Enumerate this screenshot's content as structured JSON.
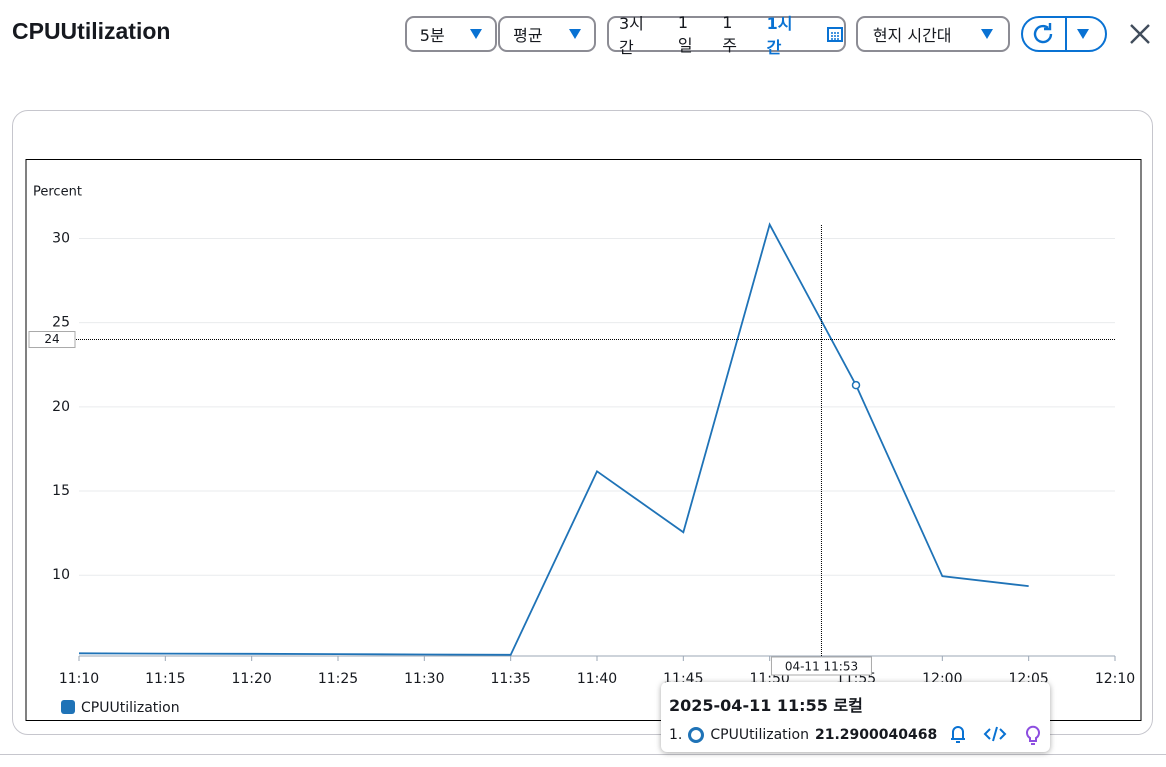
{
  "header": {
    "title": "CPUUtilization",
    "period": "5분",
    "statistic": "평균",
    "ranges": [
      "3시간",
      "1일",
      "1주",
      "1시간"
    ],
    "active_range": 3,
    "timezone": "현지 시간대"
  },
  "chart_data": {
    "type": "line",
    "y_label": "Percent",
    "x": [
      "11:10",
      "11:15",
      "11:20",
      "11:25",
      "11:30",
      "11:35",
      "11:40",
      "11:45",
      "11:50",
      "11:55",
      "12:00",
      "12:05"
    ],
    "series": [
      {
        "name": "CPUUtilization",
        "color": "#1f73b7",
        "values": [
          5.36,
          5.34,
          5.33,
          5.31,
          5.29,
          5.27,
          16.17,
          12.55,
          30.83,
          21.2900040468,
          9.94,
          9.35
        ]
      }
    ],
    "xticks": [
      "11:10",
      "11:15",
      "11:20",
      "11:25",
      "11:30",
      "11:35",
      "11:40",
      "11:45",
      "11:50",
      "11:55",
      "12:00",
      "12:05",
      "12:10"
    ],
    "ylim": [
      5.2,
      33
    ],
    "yticks": [
      10,
      15,
      20,
      25,
      30
    ],
    "grid": true,
    "crosshair": {
      "x_label": "04-11 11:53",
      "y": 24
    },
    "tooltip": {
      "title": "2025-04-11 11:55 로컬",
      "index": "1.",
      "point": 9
    }
  }
}
